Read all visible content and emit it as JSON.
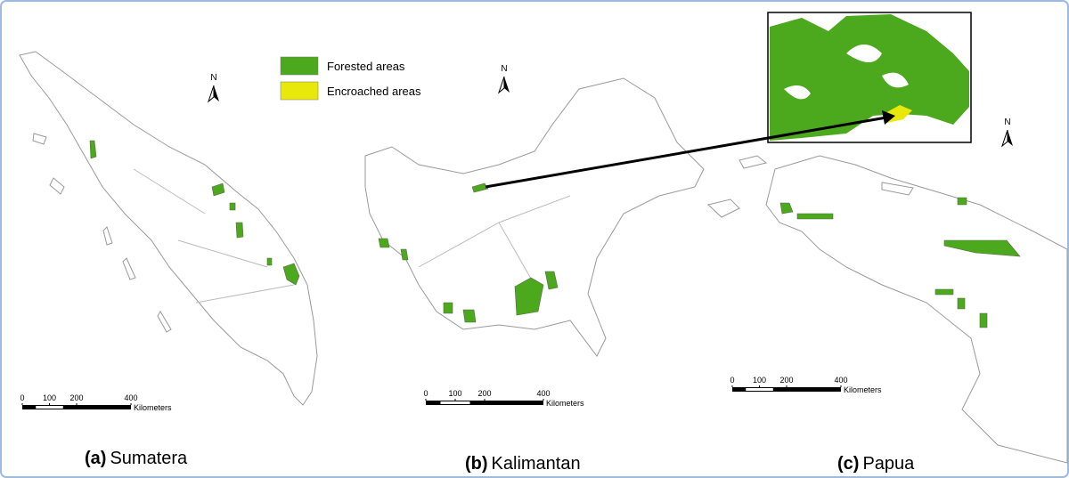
{
  "legend": {
    "items": [
      {
        "label": "Forested areas",
        "color": "#4ca81c"
      },
      {
        "label": "Encroached areas",
        "color": "#e8e80a"
      }
    ]
  },
  "panels": [
    {
      "letter": "(a)",
      "name": "Sumatera",
      "north": "N",
      "scale": {
        "ticks": [
          0,
          100,
          200,
          400
        ],
        "unit": "Kilometers"
      }
    },
    {
      "letter": "(b)",
      "name": "Kalimantan",
      "north": "N",
      "scale": {
        "ticks": [
          0,
          100,
          200,
          400
        ],
        "unit": "Kilometers"
      }
    },
    {
      "letter": "(c)",
      "name": "Papua",
      "north": "N",
      "scale": {
        "ticks": [
          0,
          100,
          200,
          400
        ],
        "unit": "Kilometers"
      }
    }
  ]
}
